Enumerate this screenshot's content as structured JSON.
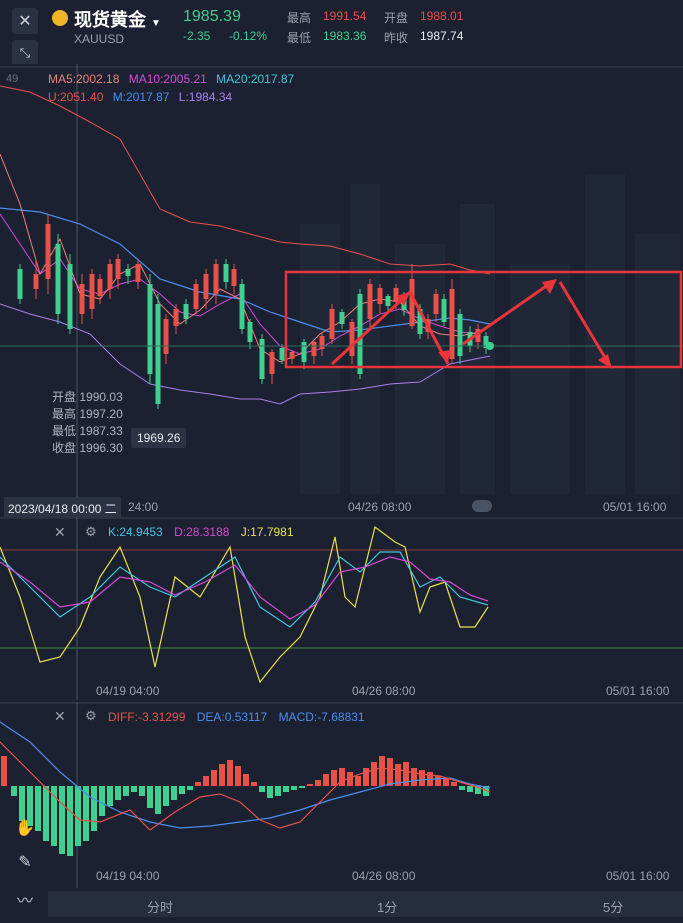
{
  "header": {
    "name": "现货黄金",
    "symbol": "XAUUSD",
    "price": "1985.39",
    "change": "-2.35",
    "change_pct": "-0.12%",
    "high_label": "最高",
    "high": "1991.54",
    "open_label": "开盘",
    "open": "1988.01",
    "low_label": "最低",
    "low": "1983.36",
    "prev_label": "昨收",
    "prev": "1987.74"
  },
  "main_chart": {
    "corner_tick": "49",
    "ma_legend": [
      {
        "text": "MA5:2002.18",
        "color": "#f07f7a"
      },
      {
        "text": "MA10:2005.21",
        "color": "#d44ad8"
      },
      {
        "text": "MA20:2017.87",
        "color": "#3fc7e0"
      }
    ],
    "boll_legend": [
      {
        "text": "U:2051.40",
        "color": "#e8514a"
      },
      {
        "text": "M:2017.87",
        "color": "#4b8ef0"
      },
      {
        "text": "L:1984.34",
        "color": "#a97ff0"
      }
    ],
    "ohlc_panel": {
      "open_label": "开盘",
      "open": "1990.03",
      "high_label": "最高",
      "high": "1997.20",
      "low_label": "最低",
      "low": "1987.33",
      "close_label": "收盘",
      "close": "1996.30"
    },
    "low_marker": "1969.26",
    "crosshair_date": "2023/04/18 00:00 二",
    "x_ticks": [
      "04/19 04:00",
      "04/26 08:00",
      "05/01 16:00"
    ]
  },
  "kdj": {
    "k": "K:24.9453",
    "d": "D:28.3188",
    "j": "J:17.7981",
    "colors": {
      "k": "#3fc7e0",
      "d": "#d44ad8",
      "j": "#e8e34a"
    },
    "x_ticks": [
      "04/19 04:00",
      "04/26 08:00",
      "05/01 16:00"
    ]
  },
  "macd": {
    "diff": "DIFF:-3.31299",
    "dea": "DEA:0.53117",
    "macd": "MACD:-7.68831",
    "colors": {
      "diff": "#e8514a",
      "dea": "#4b8ef0",
      "macd": "#4b8ef0"
    },
    "x_ticks": [
      "04/19 04:00",
      "04/26 08:00",
      "05/01 16:00"
    ]
  },
  "footer": {
    "tabs": [
      "分时",
      "1分",
      "5分"
    ]
  },
  "chart_data": {
    "type": "candlestick",
    "symbol": "XAUUSD",
    "current_price": 1985.39,
    "ma": {
      "MA5": 2002.18,
      "MA10": 2005.21,
      "MA20": 2017.87
    },
    "boll": {
      "U": 2051.4,
      "M": 2017.87,
      "L": 1984.34
    },
    "kdj": {
      "K": 24.9453,
      "D": 28.3188,
      "J": 17.7981
    },
    "macd": {
      "DIFF": -3.31299,
      "DEA": 0.53117,
      "MACD": -7.68831
    },
    "x_ticks": [
      "04/19 04:00",
      "04/26 08:00",
      "05/01 16:00"
    ]
  }
}
